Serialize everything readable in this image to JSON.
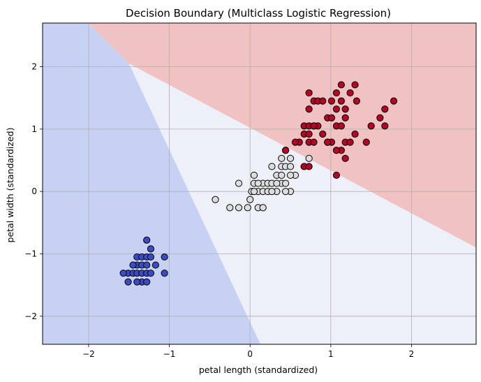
{
  "chart_data": {
    "type": "scatter",
    "title": "Decision Boundary (Multiclass Logistic Regression)",
    "xlabel": "petal length (standardized)",
    "ylabel": "petal width (standardized)",
    "xlim": [
      -2.57,
      2.8
    ],
    "ylim": [
      -2.45,
      2.7
    ],
    "xticks": [
      -2,
      -1,
      0,
      1,
      2
    ],
    "yticks": [
      -2,
      -1,
      0,
      1,
      2
    ],
    "xtick_labels": [
      "−2",
      "−1",
      "0",
      "1",
      "2"
    ],
    "ytick_labels": [
      "−2",
      "−1",
      "0",
      "1",
      "2"
    ],
    "grid": true,
    "colors": {
      "class0": "#3b4cc0",
      "class1": "#dddddd",
      "class2": "#b40426"
    },
    "regions": [
      {
        "class": 0,
        "color": "#c7d1f3",
        "polygon": [
          [
            -2.57,
            2.7
          ],
          [
            -2.0,
            2.7
          ],
          [
            -1.5,
            2.05
          ],
          [
            0.13,
            -2.45
          ],
          [
            -2.57,
            -2.45
          ]
        ]
      },
      {
        "class": 1,
        "color": "#edf0f8",
        "polygon": [
          [
            -1.5,
            2.05
          ],
          [
            2.8,
            -0.9
          ],
          [
            2.8,
            -2.45
          ],
          [
            0.13,
            -2.45
          ]
        ]
      },
      {
        "class": 2,
        "color": "#f0c2c2",
        "polygon": [
          [
            -2.0,
            2.7
          ],
          [
            2.8,
            2.7
          ],
          [
            2.8,
            -0.9
          ],
          [
            -1.5,
            2.05
          ]
        ]
      }
    ],
    "series": [
      {
        "class": 0,
        "points": [
          [
            -1.28,
            -0.78
          ],
          [
            -1.23,
            -0.92
          ],
          [
            -1.4,
            -1.05
          ],
          [
            -1.34,
            -1.05
          ],
          [
            -1.28,
            -1.05
          ],
          [
            -1.23,
            -1.05
          ],
          [
            -1.06,
            -1.05
          ],
          [
            -1.4,
            -1.18
          ],
          [
            -1.34,
            -1.18
          ],
          [
            -1.28,
            -1.18
          ],
          [
            -1.17,
            -1.18
          ],
          [
            -1.51,
            -1.31
          ],
          [
            -1.45,
            -1.31
          ],
          [
            -1.4,
            -1.31
          ],
          [
            -1.34,
            -1.31
          ],
          [
            -1.28,
            -1.31
          ],
          [
            -1.23,
            -1.31
          ],
          [
            -1.06,
            -1.31
          ],
          [
            -1.57,
            -1.31
          ],
          [
            -1.51,
            -1.45
          ],
          [
            -1.34,
            -1.45
          ],
          [
            -1.28,
            -1.45
          ],
          [
            -1.4,
            -1.45
          ],
          [
            -1.45,
            -1.18
          ]
        ]
      },
      {
        "class": 1,
        "points": [
          [
            -0.43,
            -0.13
          ],
          [
            -0.14,
            0.13
          ],
          [
            0.05,
            0.26
          ],
          [
            0.16,
            0.13
          ],
          [
            0.22,
            0.13
          ],
          [
            0.27,
            0.4
          ],
          [
            0.33,
            0.26
          ],
          [
            0.39,
            0.4
          ],
          [
            0.39,
            0.53
          ],
          [
            0.44,
            0.4
          ],
          [
            0.5,
            0.53
          ],
          [
            0.5,
            0.4
          ],
          [
            0.56,
            0.26
          ],
          [
            0.67,
            0.4
          ],
          [
            0.73,
            0.53
          ],
          [
            0.44,
            0.66
          ],
          [
            0.05,
            0.13
          ],
          [
            0.1,
            0.0
          ],
          [
            0.16,
            0.0
          ],
          [
            0.22,
            0.0
          ],
          [
            0.33,
            0.0
          ],
          [
            0.39,
            0.13
          ],
          [
            0.44,
            0.13
          ],
          [
            0.5,
            0.0
          ],
          [
            0.27,
            0.13
          ],
          [
            0.0,
            -0.13
          ],
          [
            -0.03,
            -0.26
          ],
          [
            -0.14,
            -0.26
          ],
          [
            -0.25,
            -0.26
          ],
          [
            0.1,
            -0.26
          ],
          [
            0.16,
            -0.26
          ],
          [
            0.1,
            0.13
          ],
          [
            0.5,
            0.26
          ],
          [
            0.39,
            0.26
          ],
          [
            0.44,
            0.0
          ],
          [
            0.02,
            0.0
          ],
          [
            0.05,
            0.0
          ],
          [
            0.27,
            0.0
          ],
          [
            0.33,
            0.13
          ]
        ]
      },
      {
        "class": 2,
        "points": [
          [
            0.73,
            1.58
          ],
          [
            1.07,
            1.58
          ],
          [
            1.24,
            1.58
          ],
          [
            1.13,
            1.71
          ],
          [
            1.3,
            1.71
          ],
          [
            0.79,
            1.45
          ],
          [
            0.84,
            1.45
          ],
          [
            0.9,
            1.45
          ],
          [
            1.01,
            1.45
          ],
          [
            1.13,
            1.45
          ],
          [
            1.32,
            1.45
          ],
          [
            1.78,
            1.45
          ],
          [
            0.73,
            1.32
          ],
          [
            1.07,
            1.32
          ],
          [
            1.18,
            1.32
          ],
          [
            1.67,
            1.32
          ],
          [
            0.96,
            1.18
          ],
          [
            1.01,
            1.18
          ],
          [
            1.18,
            1.18
          ],
          [
            1.61,
            1.18
          ],
          [
            0.67,
            1.05
          ],
          [
            0.73,
            1.05
          ],
          [
            0.79,
            1.05
          ],
          [
            0.84,
            1.05
          ],
          [
            1.07,
            1.05
          ],
          [
            1.5,
            1.05
          ],
          [
            1.67,
            1.05
          ],
          [
            0.67,
            0.92
          ],
          [
            0.73,
            0.92
          ],
          [
            0.9,
            0.92
          ],
          [
            1.3,
            0.92
          ],
          [
            0.73,
            0.79
          ],
          [
            0.79,
            0.79
          ],
          [
            0.96,
            0.79
          ],
          [
            1.01,
            0.79
          ],
          [
            1.18,
            0.79
          ],
          [
            1.44,
            0.79
          ],
          [
            0.61,
            0.79
          ],
          [
            0.56,
            0.79
          ],
          [
            1.13,
            0.66
          ],
          [
            0.44,
            0.66
          ],
          [
            1.07,
            0.66
          ],
          [
            1.18,
            0.53
          ],
          [
            0.67,
            0.4
          ],
          [
            0.73,
            0.4
          ],
          [
            1.07,
            0.26
          ],
          [
            0.96,
            0.79
          ],
          [
            1.13,
            1.05
          ],
          [
            1.24,
            0.79
          ],
          [
            0.79,
            1.05
          ]
        ]
      }
    ]
  }
}
